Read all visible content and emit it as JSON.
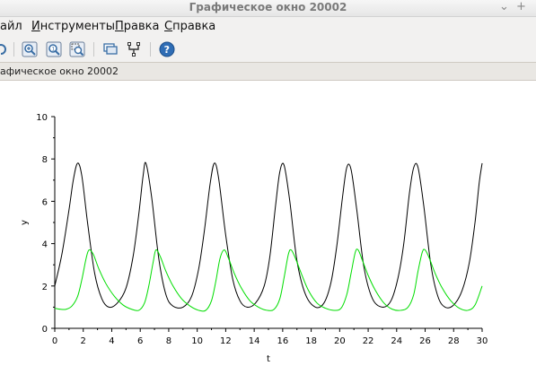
{
  "window": {
    "title": "Графическое окно 20002",
    "minimize_glyph": "⌄",
    "maximize_glyph": "+"
  },
  "menu": {
    "items": [
      "айл",
      "Инструменты",
      "Правка",
      "Справка"
    ],
    "underlined_first": [
      false,
      true,
      true,
      true
    ]
  },
  "toolbar": {
    "icons": [
      "rotate-icon",
      "zoom-icon",
      "zoom-fit-icon",
      "zoom-select-icon",
      "datatip-icon",
      "edit-axes-icon",
      "help-icon"
    ]
  },
  "status": {
    "text": "афическое окно 20002"
  },
  "colors": {
    "series_black": "#000000",
    "series_green": "#00dd00",
    "window_bg": "#f2f1f0"
  },
  "chart_data": {
    "type": "line",
    "title": "",
    "xlabel": "t",
    "ylabel": "y",
    "xlim": [
      0,
      30
    ],
    "ylim": [
      0,
      10
    ],
    "xticks": [
      0,
      2,
      4,
      6,
      8,
      10,
      12,
      14,
      16,
      18,
      20,
      22,
      24,
      26,
      28,
      30
    ],
    "yticks": [
      0,
      2,
      4,
      6,
      8,
      10
    ],
    "grid": false,
    "series": [
      {
        "color": "#000000",
        "x": [
          0.0,
          0.5,
          1.0,
          1.3,
          1.6,
          1.9,
          2.3,
          2.8,
          3.3,
          3.8,
          4.4,
          5.0,
          5.5,
          5.9,
          6.2,
          6.4,
          6.8,
          7.3,
          7.8,
          8.3,
          9.0,
          9.6,
          10.1,
          10.5,
          10.9,
          11.2,
          11.5,
          12.0,
          12.5,
          13.0,
          13.5,
          14.1,
          14.7,
          15.1,
          15.5,
          15.8,
          16.1,
          16.5,
          17.0,
          17.6,
          18.3,
          18.9,
          19.4,
          19.8,
          20.2,
          20.5,
          20.8,
          21.2,
          21.7,
          22.3,
          23.0,
          23.6,
          24.1,
          24.5,
          24.9,
          25.2,
          25.5,
          25.9,
          26.4,
          26.9,
          27.4,
          28.0,
          28.6,
          29.1,
          29.5,
          29.8,
          30.0
        ],
        "y": [
          2.0,
          3.5,
          5.6,
          7.0,
          7.8,
          7.2,
          5.0,
          2.6,
          1.4,
          1.0,
          1.2,
          1.9,
          3.4,
          5.4,
          7.2,
          7.8,
          6.2,
          3.3,
          1.6,
          1.05,
          1.0,
          1.5,
          2.8,
          4.6,
          6.8,
          7.8,
          7.1,
          4.4,
          2.3,
          1.3,
          1.0,
          1.2,
          2.0,
          3.4,
          5.8,
          7.4,
          7.7,
          6.0,
          3.2,
          1.6,
          1.0,
          1.2,
          2.2,
          3.9,
          6.2,
          7.6,
          7.5,
          5.6,
          2.9,
          1.4,
          1.0,
          1.3,
          2.4,
          4.0,
          6.4,
          7.6,
          7.6,
          5.8,
          3.0,
          1.5,
          1.0,
          1.1,
          1.8,
          3.1,
          5.0,
          6.9,
          7.8
        ]
      },
      {
        "color": "#00dd00",
        "x": [
          0.0,
          0.4,
          0.8,
          1.2,
          1.6,
          1.9,
          2.2,
          2.4,
          2.7,
          3.1,
          3.6,
          4.2,
          4.8,
          5.4,
          5.9,
          6.3,
          6.6,
          6.9,
          7.1,
          7.4,
          7.8,
          8.3,
          8.9,
          9.5,
          10.1,
          10.6,
          11.0,
          11.3,
          11.6,
          11.9,
          12.2,
          12.6,
          13.1,
          13.7,
          14.3,
          14.9,
          15.4,
          15.8,
          16.1,
          16.4,
          16.6,
          16.9,
          17.3,
          17.8,
          18.4,
          19.0,
          19.6,
          20.1,
          20.5,
          20.8,
          21.1,
          21.3,
          21.6,
          22.0,
          22.5,
          23.1,
          23.7,
          24.3,
          24.8,
          25.2,
          25.5,
          25.8,
          26.0,
          26.3,
          26.7,
          27.2,
          27.8,
          28.4,
          29.0,
          29.5,
          30.0
        ],
        "y": [
          0.95,
          0.9,
          0.9,
          1.05,
          1.5,
          2.3,
          3.3,
          3.7,
          3.5,
          2.8,
          2.1,
          1.5,
          1.1,
          0.9,
          0.85,
          1.2,
          2.0,
          3.1,
          3.7,
          3.4,
          2.7,
          2.0,
          1.4,
          1.05,
          0.85,
          0.85,
          1.3,
          2.2,
          3.3,
          3.7,
          3.3,
          2.6,
          1.9,
          1.3,
          1.0,
          0.85,
          0.9,
          1.4,
          2.4,
          3.5,
          3.7,
          3.3,
          2.6,
          1.8,
          1.2,
          0.95,
          0.85,
          0.95,
          1.6,
          2.6,
          3.6,
          3.7,
          3.2,
          2.5,
          1.8,
          1.2,
          0.9,
          0.85,
          1.0,
          1.6,
          2.7,
          3.6,
          3.7,
          3.3,
          2.6,
          1.9,
          1.3,
          0.95,
          0.85,
          1.1,
          2.0
        ]
      }
    ]
  }
}
